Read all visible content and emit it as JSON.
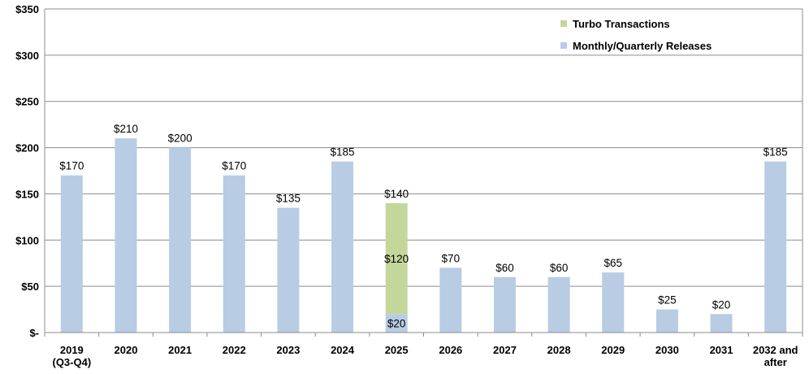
{
  "chart_data": {
    "type": "bar",
    "stacked": true,
    "categories": [
      [
        "2019",
        "(Q3-Q4)"
      ],
      [
        "2020"
      ],
      [
        "2021"
      ],
      [
        "2022"
      ],
      [
        "2023"
      ],
      [
        "2024"
      ],
      [
        "2025"
      ],
      [
        "2026"
      ],
      [
        "2027"
      ],
      [
        "2028"
      ],
      [
        "2029"
      ],
      [
        "2030"
      ],
      [
        "2031"
      ],
      [
        "2032 and",
        "after"
      ]
    ],
    "series": [
      {
        "name": "Monthly/Quarterly Releases",
        "color": "#b8cce4",
        "values": [
          170,
          210,
          200,
          170,
          135,
          185,
          20,
          70,
          60,
          60,
          65,
          25,
          20,
          185
        ]
      },
      {
        "name": "Turbo Transactions",
        "color": "#c4d79b",
        "values": [
          0,
          0,
          0,
          0,
          0,
          0,
          120,
          0,
          0,
          0,
          0,
          0,
          0,
          0
        ]
      }
    ],
    "total_labels": [
      "$170",
      "$210",
      "$200",
      "$170",
      "$135",
      "$185",
      "$140",
      "$70",
      "$60",
      "$60",
      "$65",
      "$25",
      "$20",
      "$185"
    ],
    "segment_labels": [
      {
        "category_index": 6,
        "series_index": 0,
        "text": "$20"
      },
      {
        "category_index": 6,
        "series_index": 1,
        "text": "$120"
      }
    ],
    "ylim": [
      0,
      350
    ],
    "y_ticks": [
      0,
      50,
      100,
      150,
      200,
      250,
      300,
      350
    ],
    "y_tick_labels": [
      "$-",
      "$50",
      "$100",
      "$150",
      "$200",
      "$250",
      "$300",
      "$350"
    ],
    "grid": true,
    "legend_position": "top-right",
    "legend_order": [
      1,
      0
    ],
    "title": "",
    "xlabel": "",
    "ylabel": ""
  }
}
